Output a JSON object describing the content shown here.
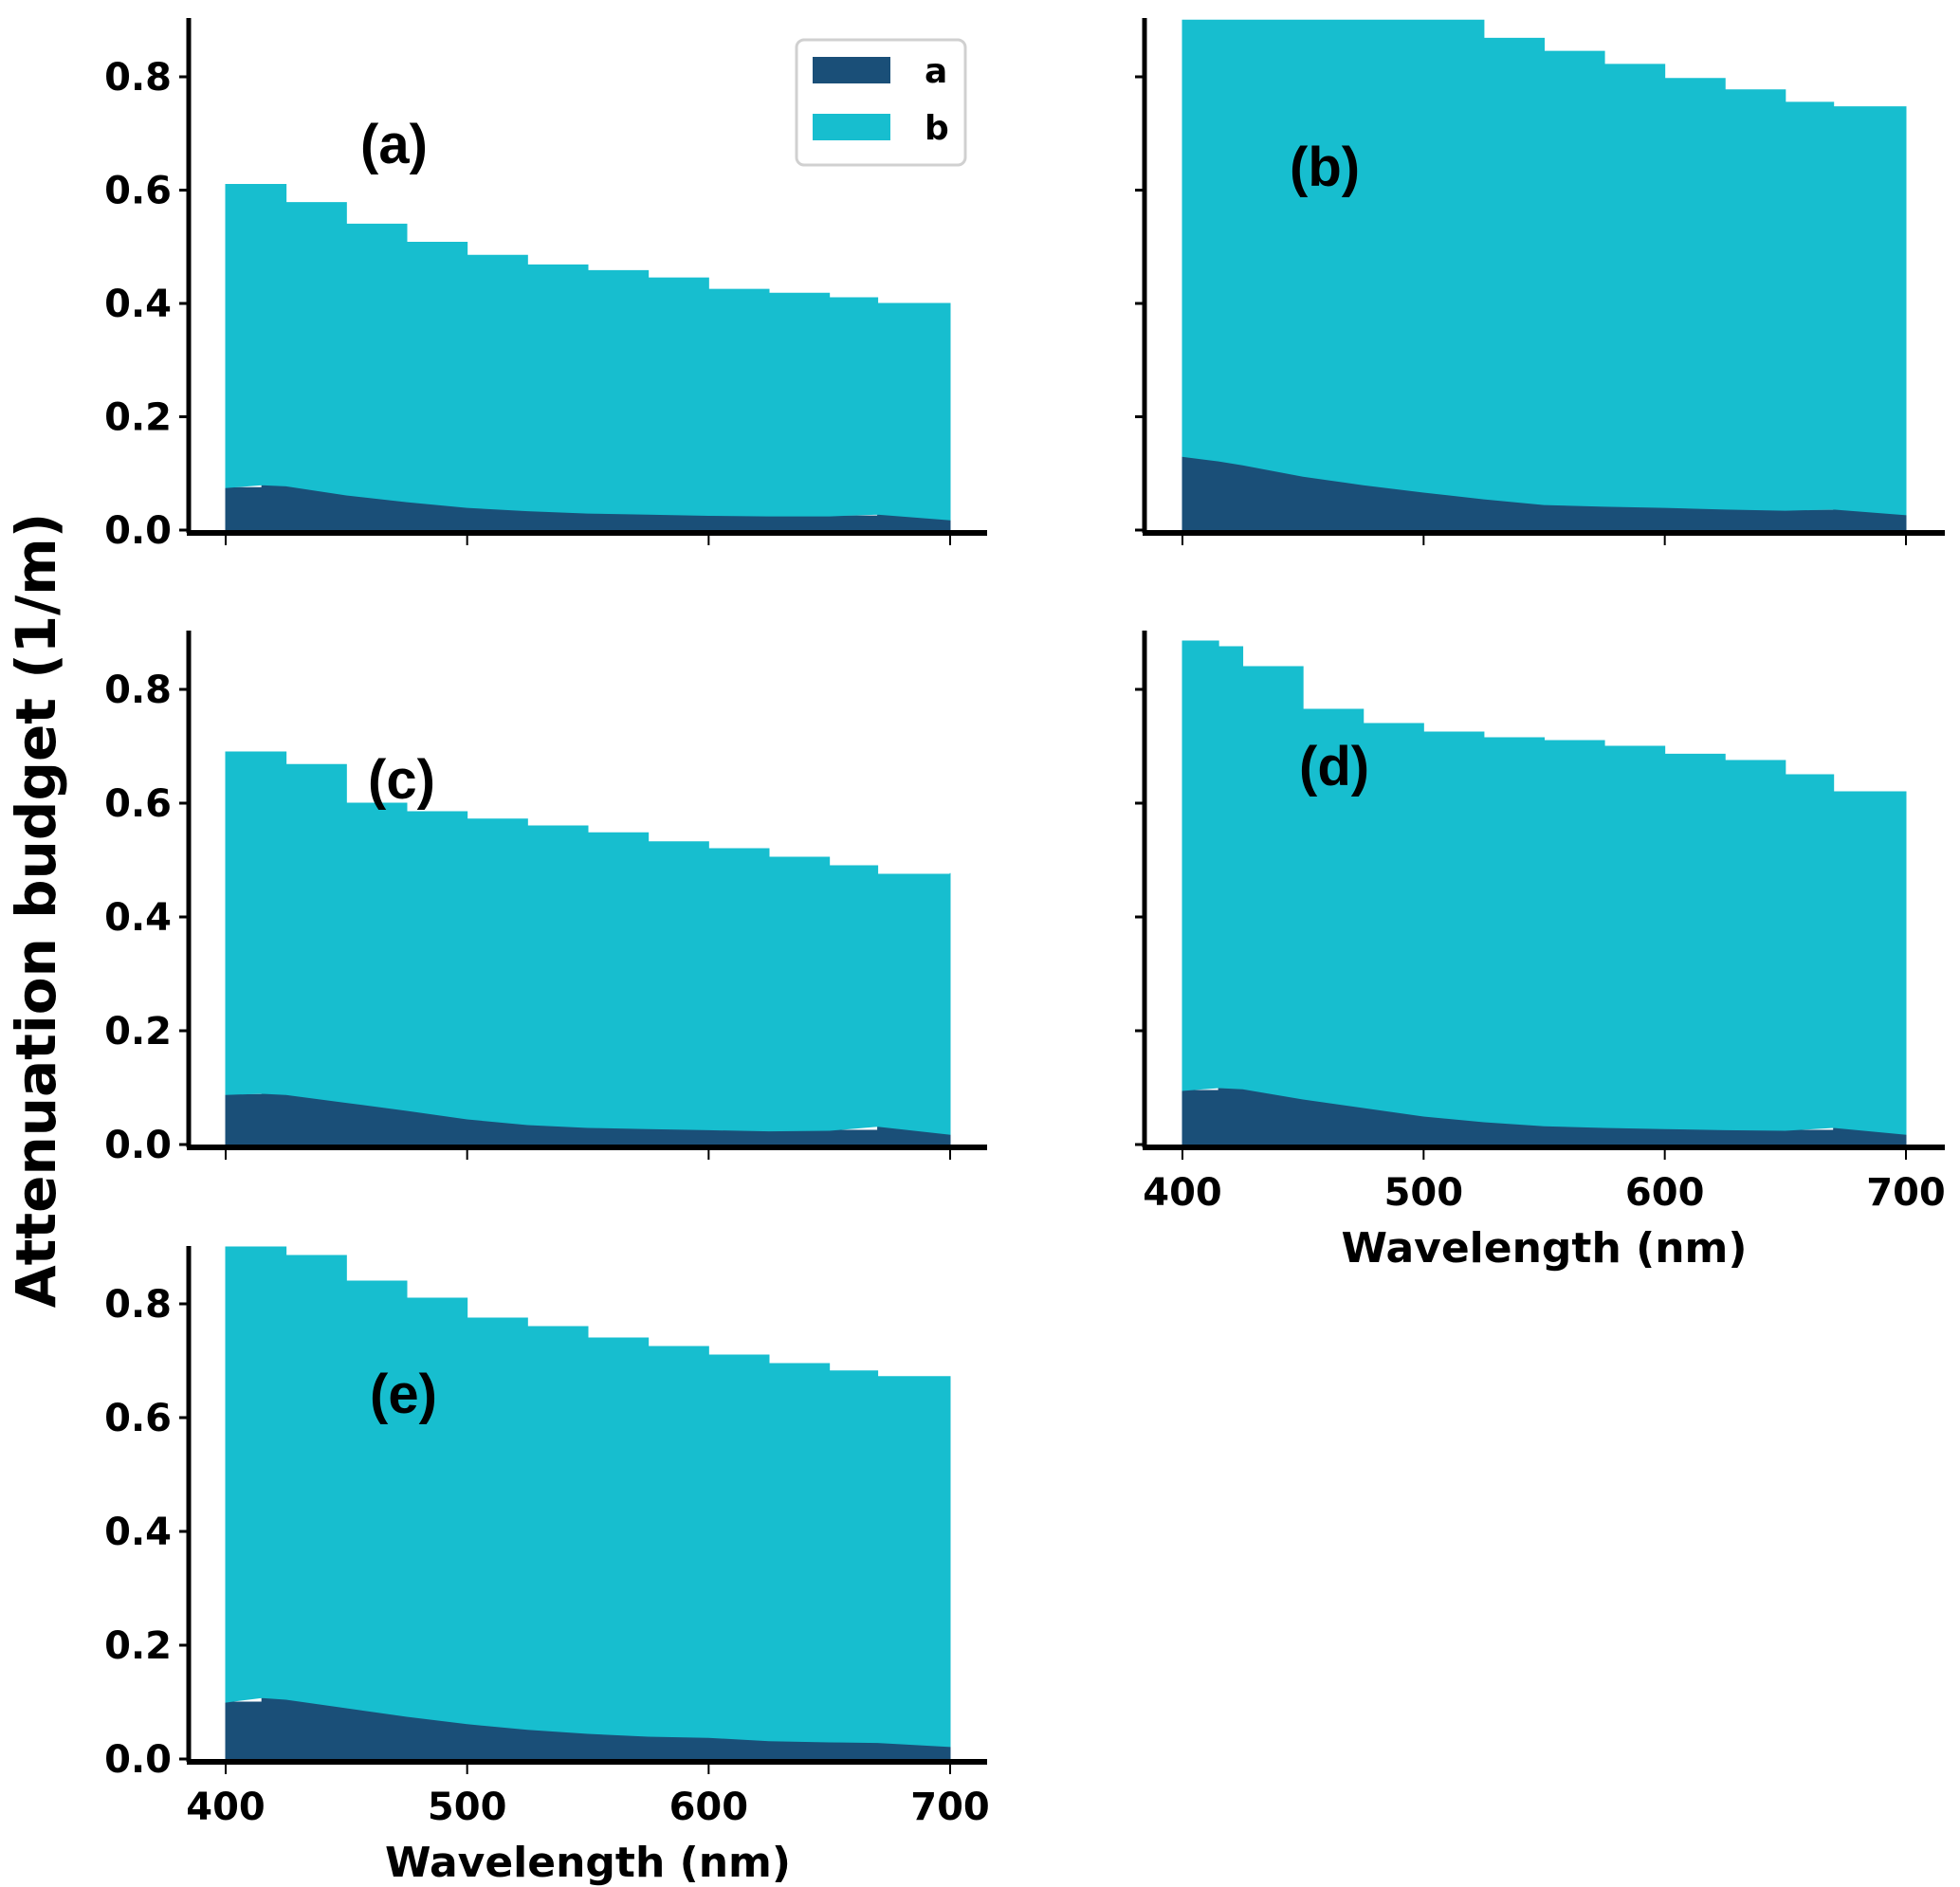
{
  "chart_data": {
    "type": "area",
    "stacked": true,
    "ylabel": "Attenuation budget (1/m)",
    "xlabel": "Wavelength (nm)",
    "legend": {
      "placement": "top-right of panel (a)",
      "entries": [
        {
          "label": "a",
          "color": "#1a4f78"
        },
        {
          "label": "b",
          "color": "#17becf"
        }
      ]
    },
    "xlim": [
      400,
      700
    ],
    "ylim": [
      0,
      0.9
    ],
    "x_ticks": [
      400,
      500,
      600,
      700
    ],
    "x_tick_labels": [
      "400",
      "500",
      "600",
      "700"
    ],
    "y_ticks": [
      0.0,
      0.2,
      0.4,
      0.6,
      0.8
    ],
    "y_tick_labels": [
      "0.0",
      "0.2",
      "0.4",
      "0.6",
      "0.8"
    ],
    "x": [
      400,
      415,
      425,
      450,
      475,
      500,
      525,
      550,
      575,
      600,
      625,
      650,
      670,
      700
    ],
    "panels": [
      {
        "label": "(a)",
        "show_x_ticklabels": false,
        "series": [
          {
            "name": "a",
            "values": [
              0.075,
              0.08,
              0.078,
              0.062,
              0.05,
              0.04,
              0.034,
              0.03,
              0.028,
              0.026,
              0.025,
              0.025,
              0.028,
              0.018
            ]
          },
          {
            "name": "b",
            "values": [
              0.535,
              0.53,
              0.5,
              0.478,
              0.458,
              0.445,
              0.434,
              0.428,
              0.417,
              0.399,
              0.393,
              0.385,
              0.372,
              0.377
            ]
          }
        ],
        "total": [
          0.61,
          0.61,
          0.578,
          0.54,
          0.508,
          0.485,
          0.468,
          0.458,
          0.445,
          0.425,
          0.418,
          0.41,
          0.4,
          0.395
        ]
      },
      {
        "label": "(b)",
        "show_x_ticklabels": false,
        "series": [
          {
            "name": "a",
            "values": [
              0.13,
              0.122,
              0.115,
              0.095,
              0.08,
              0.067,
              0.055,
              0.045,
              0.042,
              0.04,
              0.037,
              0.035,
              0.037,
              0.027
            ]
          },
          {
            "name": "b",
            "values": [
              0.77,
              0.778,
              0.785,
              0.805,
              0.82,
              0.833,
              0.813,
              0.8,
              0.78,
              0.757,
              0.74,
              0.72,
              0.71,
              0.665
            ]
          }
        ],
        "total": [
          0.9,
          0.9,
          0.9,
          0.9,
          0.9,
          0.9,
          0.868,
          0.845,
          0.822,
          0.797,
          0.777,
          0.755,
          0.747,
          0.692
        ]
      },
      {
        "label": "(c)",
        "show_x_ticklabels": false,
        "series": [
          {
            "name": "a",
            "values": [
              0.088,
              0.09,
              0.088,
              0.074,
              0.06,
              0.045,
              0.035,
              0.03,
              0.028,
              0.026,
              0.024,
              0.025,
              0.032,
              0.018
            ]
          },
          {
            "name": "b",
            "values": [
              0.602,
              0.6,
              0.58,
              0.526,
              0.525,
              0.527,
              0.525,
              0.518,
              0.504,
              0.494,
              0.481,
              0.465,
              0.443,
              0.459
            ]
          }
        ],
        "total": [
          0.69,
          0.69,
          0.668,
          0.6,
          0.585,
          0.572,
          0.56,
          0.548,
          0.532,
          0.52,
          0.505,
          0.49,
          0.475,
          0.477
        ]
      },
      {
        "label": "(d)",
        "show_x_ticklabels": true,
        "series": [
          {
            "name": "a",
            "values": [
              0.095,
              0.1,
              0.098,
              0.08,
              0.065,
              0.05,
              0.04,
              0.033,
              0.03,
              0.028,
              0.026,
              0.025,
              0.03,
              0.018
            ]
          },
          {
            "name": "b",
            "values": [
              0.79,
              0.775,
              0.742,
              0.685,
              0.675,
              0.675,
              0.675,
              0.677,
              0.67,
              0.658,
              0.649,
              0.625,
              0.59,
              0.6
            ]
          }
        ],
        "total": [
          0.885,
          0.875,
          0.84,
          0.765,
          0.74,
          0.725,
          0.715,
          0.71,
          0.7,
          0.686,
          0.675,
          0.65,
          0.62,
          0.618
        ]
      },
      {
        "label": "(e)",
        "show_x_ticklabels": true,
        "series": [
          {
            "name": "a",
            "values": [
              0.1,
              0.108,
              0.105,
              0.09,
              0.075,
              0.062,
              0.052,
              0.045,
              0.04,
              0.038,
              0.032,
              0.03,
              0.029,
              0.022
            ]
          },
          {
            "name": "b",
            "values": [
              0.8,
              0.792,
              0.78,
              0.75,
              0.735,
              0.713,
              0.708,
              0.695,
              0.685,
              0.672,
              0.663,
              0.652,
              0.643,
              0.618
            ]
          }
        ],
        "total": [
          0.9,
          0.9,
          0.885,
          0.84,
          0.81,
          0.775,
          0.76,
          0.74,
          0.725,
          0.71,
          0.695,
          0.682,
          0.672,
          0.64
        ]
      }
    ]
  }
}
